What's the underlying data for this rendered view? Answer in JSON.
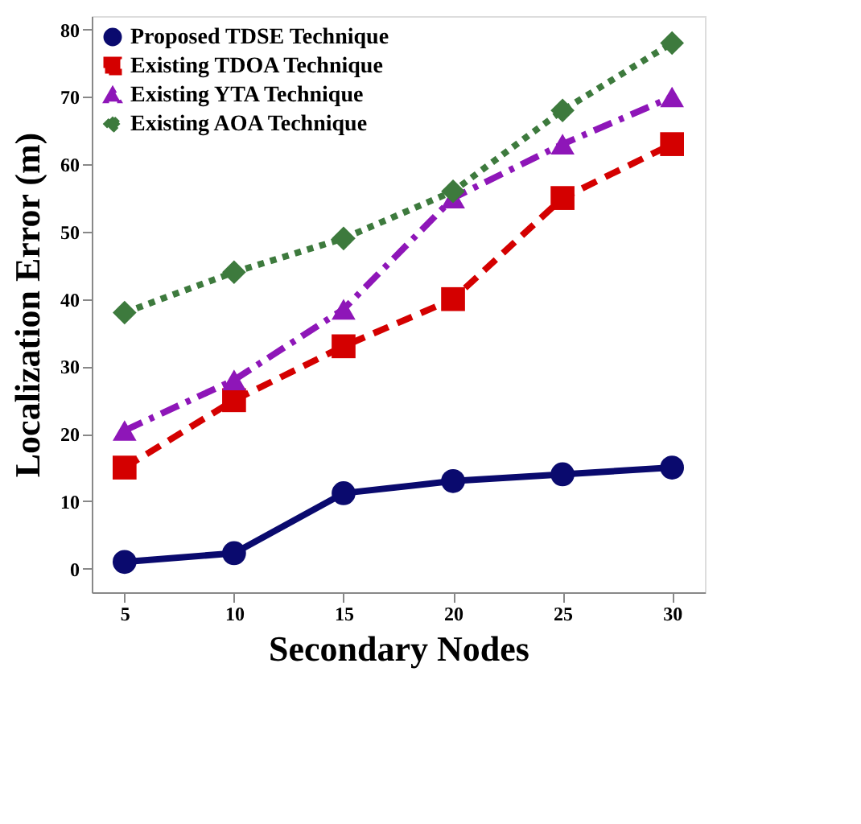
{
  "chart_data": {
    "type": "line",
    "xlabel": "Secondary Nodes",
    "ylabel": "Localization Error (m)",
    "x": [
      5,
      10,
      15,
      20,
      25,
      30
    ],
    "xlim": [
      3.5,
      31.5
    ],
    "xticks": [
      5,
      10,
      15,
      20,
      25,
      30
    ],
    "ylim": [
      -3.5,
      82
    ],
    "yticks": [
      0,
      10,
      20,
      30,
      40,
      50,
      60,
      70,
      80
    ],
    "grid": false,
    "legend": "top left",
    "series": [
      {
        "name": "Proposed TDSE Technique",
        "color": "#0a0a6e",
        "marker": "circle",
        "line_style": "solid",
        "values": [
          1,
          2.3,
          11.2,
          13,
          14,
          15
        ]
      },
      {
        "name": "Existing TDOA Technique",
        "color": "#d40000",
        "marker": "square",
        "line_style": "dashed",
        "values": [
          15,
          25,
          33,
          40,
          55,
          63
        ]
      },
      {
        "name": "Existing YTA Technique",
        "color": "#8e16b8",
        "marker": "triangle",
        "line_style": "dashdot",
        "values": [
          20.5,
          28,
          38.5,
          55,
          63,
          70
        ]
      },
      {
        "name": "Existing AOA Technique",
        "color": "#3d7a3d",
        "marker": "diamond",
        "line_style": "dotted",
        "values": [
          38,
          44,
          49,
          56,
          68,
          78
        ]
      }
    ]
  }
}
